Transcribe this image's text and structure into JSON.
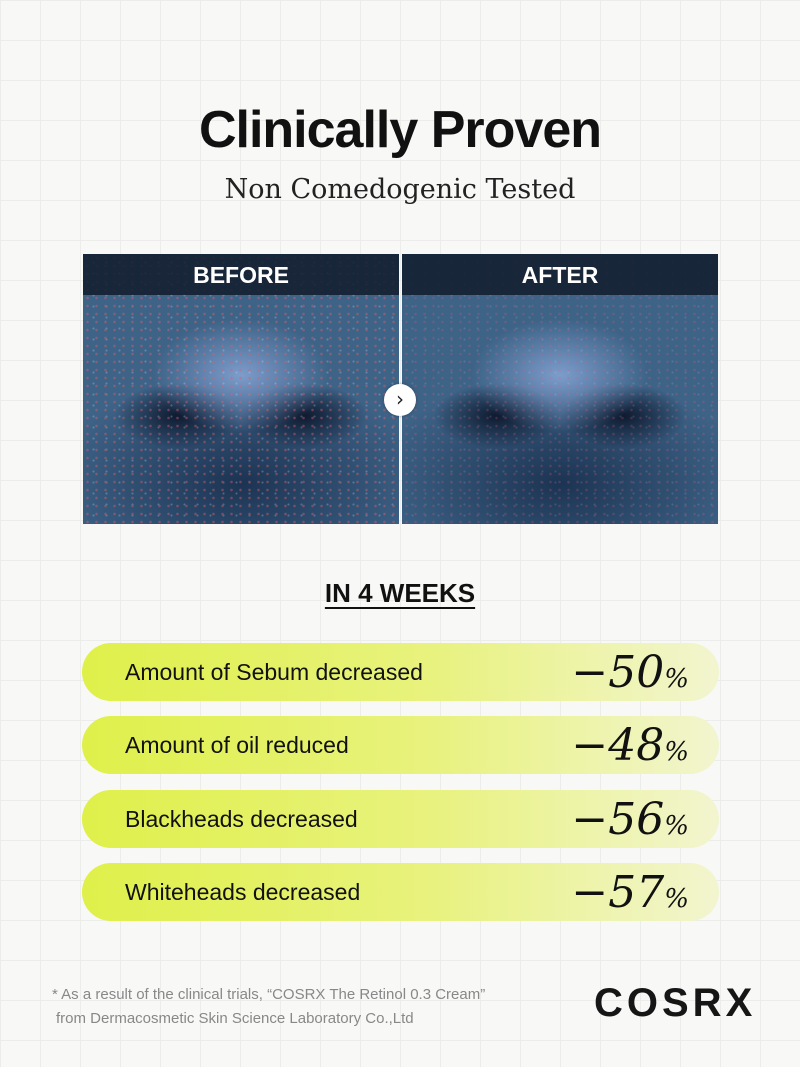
{
  "title": "Clinically Proven",
  "subtitle": "Non Comedogenic Tested",
  "before_label": "BEFORE",
  "after_label": "AFTER",
  "arrow_icon": "chevron-right-icon",
  "period": "IN 4 WEEKS",
  "results": [
    {
      "label": "Amount of Sebum decreased",
      "value": "−50",
      "unit": "%"
    },
    {
      "label": "Amount of oil reduced",
      "value": "−48",
      "unit": "%"
    },
    {
      "label": "Blackheads decreased",
      "value": "−56",
      "unit": "%"
    },
    {
      "label": "Whiteheads decreased",
      "value": "−57",
      "unit": "%"
    }
  ],
  "footnote": {
    "line1": "* As a result of the clinical trials, “COSRX The Retinol 0.3 Cream”",
    "line2": "from Dermacosmetic Skin Science Laboratory Co.,Ltd"
  },
  "brand": "COSRX",
  "colors": {
    "pill_accent": "#dff04a"
  }
}
